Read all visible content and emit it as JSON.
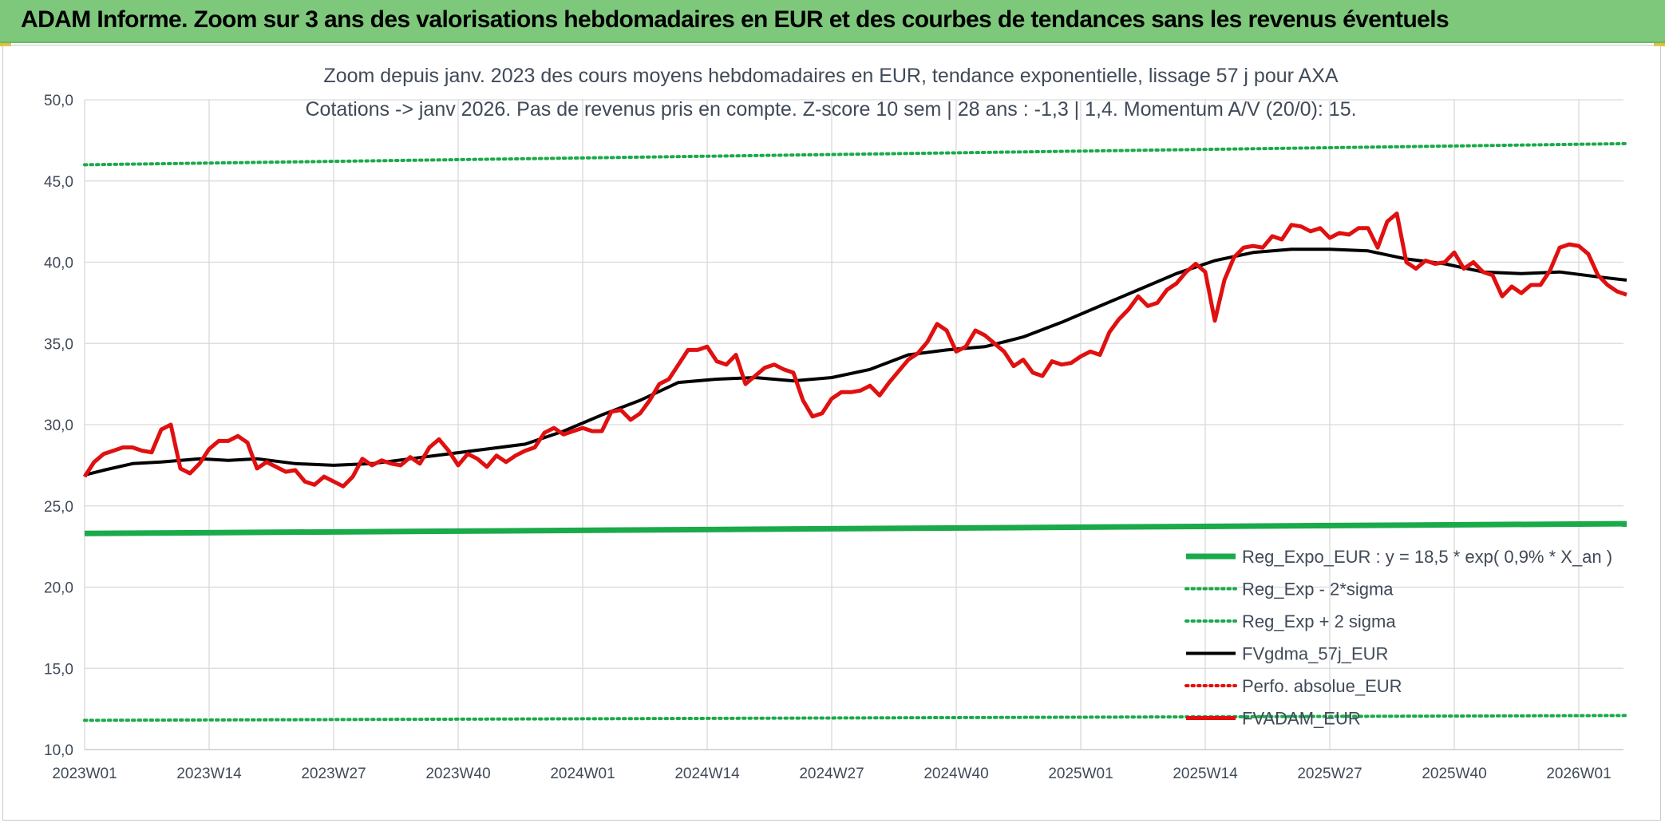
{
  "header": {
    "title": "ADAM Informe. Zoom sur 3 ans des valorisations hebdomadaires en EUR et des courbes de tendances sans les revenus éventuels"
  },
  "chart_data": {
    "type": "line",
    "title": "Zoom depuis janv. 2023 des cours moyens hebdomadaires en EUR, tendance exponentielle, lissage 57 j pour AXA",
    "subtitle": "Cotations -> janv 2026. Pas de revenus pris en compte. Z-score 10 sem | 28 ans : -1,3 | 1,4. Momentum A/V (20/0): 15.",
    "ylim": [
      10,
      50
    ],
    "y_ticks": [
      "10,0",
      "15,0",
      "20,0",
      "25,0",
      "30,0",
      "35,0",
      "40,0",
      "45,0",
      "50,0"
    ],
    "x_ticks": [
      "2023W01",
      "2023W14",
      "2023W27",
      "2023W40",
      "2024W01",
      "2024W14",
      "2024W27",
      "2024W40",
      "2025W01",
      "2025W14",
      "2025W27",
      "2025W40",
      "2026W01"
    ],
    "weeks_total": 162,
    "legend_position": "bottom-right",
    "grid": true,
    "series": [
      {
        "name": "Reg_Expo_EUR : y = 18,5 * exp( 0,9% *  X_an )",
        "color": "#1aaa4a",
        "style": "thick",
        "x": [
          0,
          161
        ],
        "values": [
          23.3,
          23.9
        ]
      },
      {
        "name": "Reg_Exp - 2*sigma",
        "color": "#1aaa4a",
        "style": "dotted",
        "x": [
          0,
          161
        ],
        "values": [
          11.8,
          12.1
        ]
      },
      {
        "name": "Reg_Exp + 2 sigma",
        "color": "#1aaa4a",
        "style": "dotted",
        "x": [
          0,
          161
        ],
        "values": [
          46.0,
          47.3
        ]
      },
      {
        "name": "FVgdma_57j_EUR",
        "color": "#000000",
        "style": "solid",
        "x": [
          0,
          2,
          5,
          8,
          12,
          15,
          18,
          22,
          26,
          30,
          34,
          38,
          42,
          46,
          50,
          54,
          58,
          62,
          66,
          70,
          74,
          78,
          82,
          86,
          90,
          94,
          98,
          102,
          106,
          110,
          114,
          118,
          122,
          126,
          130,
          134,
          138,
          142,
          146,
          150,
          154,
          158,
          161
        ],
        "values": [
          26.9,
          27.2,
          27.6,
          27.7,
          27.9,
          27.8,
          27.9,
          27.6,
          27.5,
          27.6,
          27.9,
          28.2,
          28.5,
          28.8,
          29.6,
          30.6,
          31.5,
          32.6,
          32.8,
          32.9,
          32.7,
          32.9,
          33.4,
          34.3,
          34.6,
          34.8,
          35.4,
          36.3,
          37.3,
          38.3,
          39.3,
          40.1,
          40.6,
          40.8,
          40.8,
          40.7,
          40.2,
          39.9,
          39.4,
          39.3,
          39.4,
          39.1,
          38.9
        ]
      },
      {
        "name": "Perfo. absolue_EUR",
        "color": "#e01010",
        "style": "dotted",
        "x": [],
        "values": []
      },
      {
        "name": "FVADAM_EUR",
        "color": "#e01010",
        "style": "thick",
        "x": [
          0,
          1,
          2,
          3,
          4,
          5,
          6,
          7,
          8,
          9,
          10,
          11,
          12,
          13,
          14,
          15,
          16,
          17,
          18,
          19,
          20,
          21,
          22,
          23,
          24,
          25,
          26,
          27,
          28,
          29,
          30,
          31,
          32,
          33,
          34,
          35,
          36,
          37,
          38,
          39,
          40,
          41,
          42,
          43,
          44,
          45,
          46,
          47,
          48,
          49,
          50,
          51,
          52,
          53,
          54,
          55,
          56,
          57,
          58,
          59,
          60,
          61,
          62,
          63,
          64,
          65,
          66,
          67,
          68,
          69,
          70,
          71,
          72,
          73,
          74,
          75,
          76,
          77,
          78,
          79,
          80,
          81,
          82,
          83,
          84,
          85,
          86,
          87,
          88,
          89,
          90,
          91,
          92,
          93,
          94,
          95,
          96,
          97,
          98,
          99,
          100,
          101,
          102,
          103,
          104,
          105,
          106,
          107,
          108,
          109,
          110,
          111,
          112,
          113,
          114,
          115,
          116,
          117,
          118,
          119,
          120,
          121,
          122,
          123,
          124,
          125,
          126,
          127,
          128,
          129,
          130,
          131,
          132,
          133,
          134,
          135,
          136,
          137,
          138,
          139,
          140,
          141,
          142,
          143,
          144,
          145,
          146,
          147,
          148,
          149,
          150,
          151,
          152,
          153,
          154,
          155,
          156,
          157,
          158,
          159,
          160,
          161
        ],
        "values": [
          26.8,
          27.7,
          28.2,
          28.4,
          28.6,
          28.6,
          28.4,
          28.3,
          29.7,
          30.0,
          27.3,
          27.0,
          27.6,
          28.5,
          29.0,
          29.0,
          29.3,
          28.9,
          27.3,
          27.7,
          27.4,
          27.1,
          27.2,
          26.5,
          26.3,
          26.8,
          26.5,
          26.2,
          26.8,
          27.9,
          27.5,
          27.8,
          27.6,
          27.5,
          28.0,
          27.6,
          28.6,
          29.1,
          28.4,
          27.5,
          28.2,
          27.9,
          27.4,
          28.1,
          27.7,
          28.1,
          28.4,
          28.6,
          29.5,
          29.8,
          29.4,
          29.6,
          29.8,
          29.6,
          29.6,
          30.8,
          30.9,
          30.3,
          30.7,
          31.5,
          32.5,
          32.8,
          33.7,
          34.6,
          34.6,
          34.8,
          33.9,
          33.7,
          34.3,
          32.5,
          33.0,
          33.5,
          33.7,
          33.4,
          33.2,
          31.5,
          30.5,
          30.7,
          31.6,
          32.0,
          32.0,
          32.1,
          32.4,
          31.8,
          32.6,
          33.3,
          34.0,
          34.4,
          35.1,
          36.2,
          35.8,
          34.5,
          34.8,
          35.8,
          35.5,
          35.0,
          34.5,
          33.6,
          34.0,
          33.2,
          33.0,
          33.9,
          33.7,
          33.8,
          34.2,
          34.5,
          34.3,
          35.7,
          36.5,
          37.1,
          37.9,
          37.3,
          37.5,
          38.3,
          38.7,
          39.4,
          39.9,
          39.4,
          36.4,
          38.9,
          40.3,
          40.9,
          41.0,
          40.9,
          41.6,
          41.4,
          42.3,
          42.2,
          41.9,
          42.1,
          41.5,
          41.8,
          41.7,
          42.1,
          42.1,
          40.9,
          42.5,
          43.0,
          40.0,
          39.6,
          40.1,
          39.9,
          40.0,
          40.6,
          39.6,
          40.0,
          39.4,
          39.2,
          37.9,
          38.5,
          38.1,
          38.6,
          38.6,
          39.5,
          40.9,
          41.1,
          41.0,
          40.5,
          39.2,
          38.6,
          38.2,
          38.0
        ]
      }
    ]
  }
}
